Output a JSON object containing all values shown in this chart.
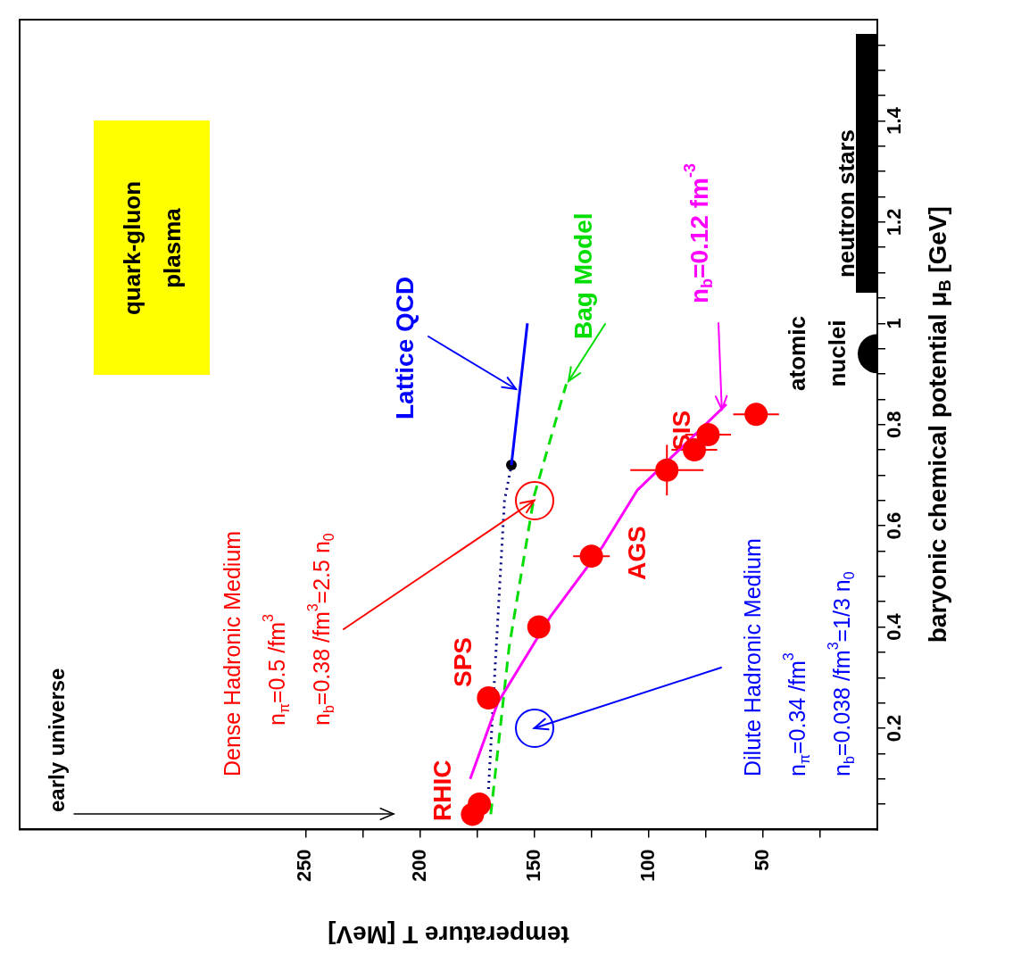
{
  "chart_data": {
    "type": "scatter",
    "orientation": "horizontal",
    "xlabel": "temperature T [MeV]",
    "ylabel": "baryonic chemical potential μ$_{B}$ [GeV]",
    "xlim": [
      375,
      0
    ],
    "ylim": [
      0,
      1.6
    ],
    "xticks": [
      {
        "value": 25,
        "label": null
      },
      50,
      {
        "value": 75,
        "label": null
      },
      100,
      {
        "value": 125,
        "label": null
      },
      150,
      {
        "value": 175,
        "label": null
      },
      200,
      {
        "value": 225,
        "label": null
      },
      250
    ],
    "yticks": [
      {
        "value": 0.05,
        "label": null
      },
      {
        "value": 0.1,
        "label": null
      },
      {
        "value": 0.15,
        "label": null
      },
      0.2,
      {
        "value": 0.25,
        "label": null
      },
      {
        "value": 0.3,
        "label": null
      },
      {
        "value": 0.35,
        "label": null
      },
      0.4,
      {
        "value": 0.45,
        "label": null
      },
      {
        "value": 0.5,
        "label": null
      },
      {
        "value": 0.55,
        "label": null
      },
      0.6,
      {
        "value": 0.65,
        "label": null
      },
      {
        "value": 0.7,
        "label": null
      },
      {
        "value": 0.75,
        "label": null
      },
      0.8,
      {
        "value": 0.85,
        "label": null
      },
      {
        "value": 0.9,
        "label": null
      },
      {
        "value": 0.95,
        "label": null
      },
      1,
      {
        "value": 1.05,
        "label": null
      },
      {
        "value": 1.1,
        "label": null
      },
      {
        "value": 1.15,
        "label": null
      },
      1.2,
      {
        "value": 1.25,
        "label": null
      },
      {
        "value": 1.3,
        "label": null
      },
      {
        "value": 1.35,
        "label": null
      },
      1.4,
      {
        "value": 1.45,
        "label": null
      },
      {
        "value": 1.5,
        "label": null
      },
      {
        "value": 1.55,
        "label": null
      }
    ],
    "grid": false,
    "legend": false,
    "series": [
      {
        "color": "#ff0000",
        "marker": "circle",
        "x": [
          0.03,
          0.05,
          0.26,
          0.4,
          0.54,
          0.71,
          0.75,
          0.78,
          0.82
        ],
        "values": [
          177,
          174,
          170,
          148,
          125,
          92,
          80,
          74,
          53
        ],
        "errors": [
          3,
          3,
          4,
          4,
          8,
          16,
          10,
          10,
          10
        ],
        "xerrors": [
          null,
          null,
          null,
          null,
          null,
          0.05,
          0.02,
          0.02,
          0.01
        ]
      },
      {
        "type": "line",
        "color": "#ff00ff",
        "line_style": "solid",
        "x": [
          0.1,
          0.25,
          0.42,
          0.56,
          0.67,
          0.84
        ],
        "values": [
          178,
          166,
          143,
          120,
          105,
          66
        ]
      },
      {
        "type": "line",
        "color": "#000080",
        "line_style": "dotted",
        "x": [
          0.08,
          0.33,
          0.65,
          0.72
        ],
        "values": [
          170,
          167,
          163,
          160
        ]
      },
      {
        "type": "line",
        "color": "#0000ff",
        "line_style": "solid",
        "x": [
          0.72,
          1.0
        ],
        "values": [
          160,
          153
        ]
      },
      {
        "type": "line",
        "color": "#00dd00",
        "line_style": "dashed",
        "x": [
          0.03,
          0.36,
          0.66,
          0.88
        ],
        "values": [
          169,
          161,
          150,
          136
        ]
      },
      {
        "type": "scatter",
        "color": "#000000",
        "marker": "circle",
        "x": [
          0.72
        ],
        "values": [
          160
        ]
      },
      {
        "type": "scatter",
        "color": "#000000",
        "marker": "circle",
        "x": [
          0.94
        ],
        "values": [
          0
        ]
      }
    ],
    "annotations": [
      "quark-gluon\nplasma",
      "early universe",
      "Dense Hadronic Medium",
      "n$_{π}$=0.5 /fm$^{3}$",
      {
        "text": "n$_{b}$=0.38 /fm$^{3}$=2.5 n$_{0}$",
        "x": 150,
        "y": 0.65
      },
      {
        "text": "Dilute Hadronic Medium",
        "x": 150,
        "y": 0.2
      },
      "n$_{π}$=0.34 /fm$^{3}$",
      "n$_{b}$=0.038 /fm$^{3}$=1/3 n$_{0}$",
      {
        "text": "Lattice QCD",
        "x": 158,
        "y": 0.87
      },
      "Bag Model",
      {
        "text": "n$_{b}$=0.12 fm$^{-3}$",
        "x": 68,
        "y": 0.83
      },
      {
        "text": "RHIC",
        "x": 177,
        "y": 0.03
      },
      {
        "text": "SPS",
        "x": 170,
        "y": 0.26
      },
      {
        "text": "AGS",
        "x": 125,
        "y": 0.54
      },
      {
        "text": "SIS",
        "x": 80,
        "y": 0.75
      },
      "atomic\nnuclei",
      "neutron stars"
    ]
  }
}
